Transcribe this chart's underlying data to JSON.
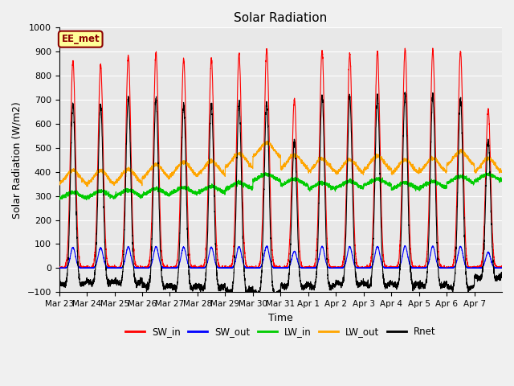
{
  "title": "Solar Radiation",
  "xlabel": "Time",
  "ylabel": "Solar Radiation (W/m2)",
  "ylim": [
    -100,
    1000
  ],
  "legend_label": "EE_met",
  "series": {
    "SW_in": {
      "color": "#ff0000",
      "lw": 0.8
    },
    "SW_out": {
      "color": "#0000ff",
      "lw": 0.8
    },
    "LW_in": {
      "color": "#00cc00",
      "lw": 0.8
    },
    "LW_out": {
      "color": "#ffa500",
      "lw": 0.8
    },
    "Rnet": {
      "color": "#000000",
      "lw": 0.8
    }
  },
  "xtick_labels": [
    "Mar 23",
    "Mar 24",
    "Mar 25",
    "Mar 26",
    "Mar 27",
    "Mar 28",
    "Mar 29",
    "Mar 30",
    "Mar 31",
    "Apr 1",
    "Apr 2",
    "Apr 3",
    "Apr 4",
    "Apr 5",
    "Apr 6",
    "Apr 7"
  ],
  "n_days": 16,
  "pts_per_day": 288,
  "background_color": "#e8e8e8",
  "grid_color": "#ffffff",
  "annotation_box_color": "#ffff99",
  "annotation_box_edge": "#8b0000",
  "fig_bg": "#f0f0f0"
}
